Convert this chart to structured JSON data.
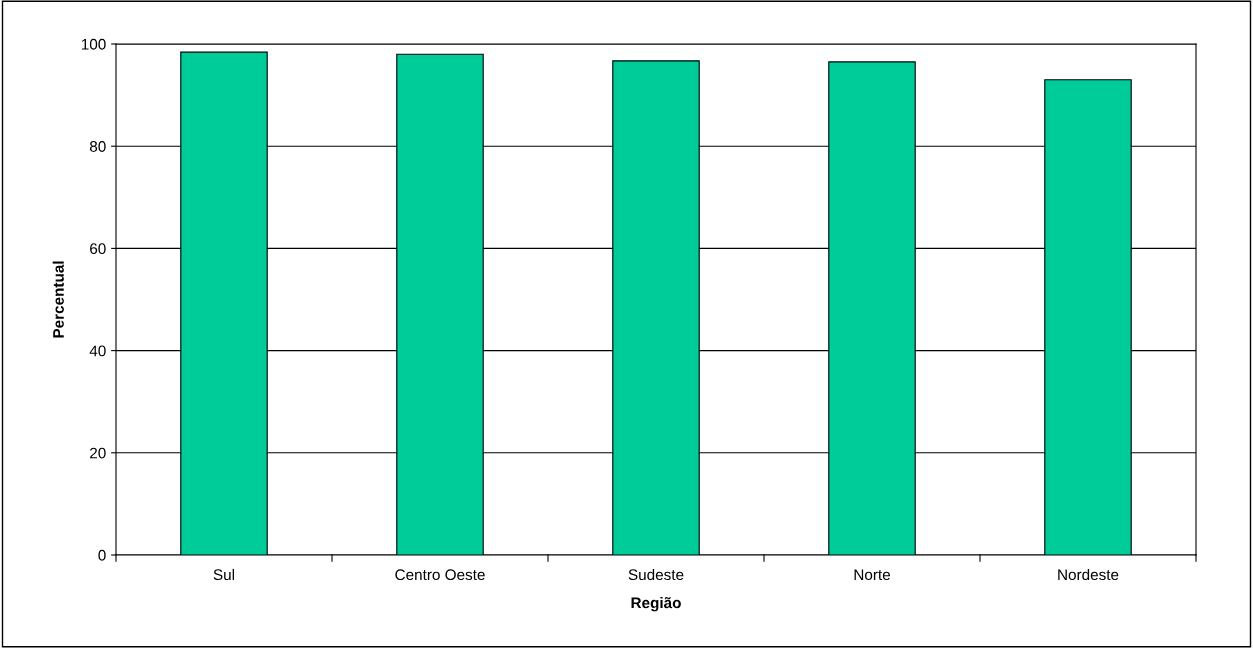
{
  "chart_data": {
    "type": "bar",
    "xlabel": "Região",
    "ylabel": "Percentual",
    "categories": [
      "Sul",
      "Centro Oeste",
      "Sudeste",
      "Norte",
      "Nordeste"
    ],
    "values": [
      98.4,
      98.0,
      96.7,
      96.5,
      93.0
    ],
    "color": "#00cc99",
    "ylim": [
      0,
      100
    ],
    "yticks": [
      0,
      20,
      40,
      60,
      80,
      100
    ],
    "grid": "y",
    "legend": false
  }
}
